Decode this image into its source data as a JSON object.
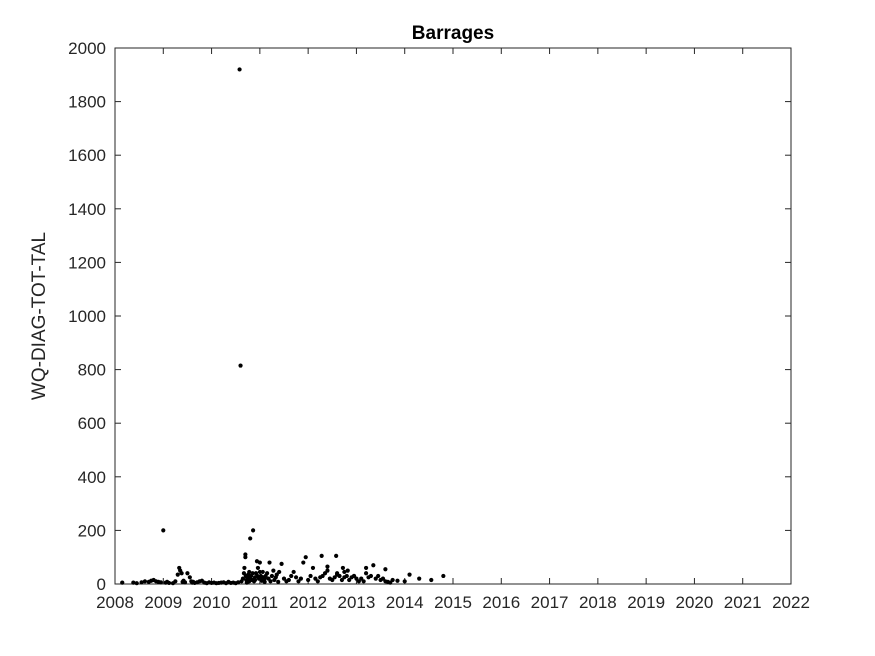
{
  "chart_data": {
    "type": "scatter",
    "title": "Barrages",
    "xlabel": "",
    "ylabel": "WQ-DIAG-TOT-TAL",
    "xlim": [
      2008,
      2022
    ],
    "ylim": [
      0,
      2000
    ],
    "x_ticks": [
      "2008",
      "2009",
      "2010",
      "2011",
      "2012",
      "2013",
      "2014",
      "2015",
      "2016",
      "2017",
      "2018",
      "2019",
      "2020",
      "2021",
      "2022"
    ],
    "y_ticks": [
      "0",
      "200",
      "400",
      "600",
      "800",
      "1000",
      "1200",
      "1400",
      "1600",
      "1800",
      "2000"
    ],
    "grid": false,
    "marker_color": "#000000",
    "series": [
      {
        "x": [
          2008.15,
          2008.38,
          2008.45,
          2008.55,
          2008.62,
          2008.7,
          2008.75,
          2008.8,
          2008.85,
          2008.9,
          2008.95,
          2009.0,
          2009.05,
          2009.08,
          2009.12,
          2009.2,
          2009.25,
          2009.3,
          2009.33,
          2009.35,
          2009.38,
          2009.4,
          2009.42,
          2009.45,
          2009.5,
          2009.55,
          2009.58,
          2009.6,
          2009.62,
          2009.65,
          2009.7,
          2009.75,
          2009.8,
          2009.85,
          2009.9,
          2009.95,
          2010.0,
          2010.05,
          2010.1,
          2010.15,
          2010.2,
          2010.25,
          2010.3,
          2010.35,
          2010.4,
          2010.45,
          2010.5,
          2010.55,
          2010.58,
          2010.6,
          2010.62,
          2010.65,
          2010.67,
          2010.68,
          2010.7,
          2010.7,
          2010.71,
          2010.72,
          2010.73,
          2010.74,
          2010.75,
          2010.76,
          2010.78,
          2010.8,
          2010.82,
          2010.84,
          2010.86,
          2010.88,
          2010.9,
          2010.92,
          2010.94,
          2010.96,
          2010.98,
          2011.0,
          2011.02,
          2011.04,
          2011.06,
          2011.08,
          2011.1,
          2011.12,
          2011.15,
          2011.18,
          2011.2,
          2011.22,
          2011.25,
          2011.28,
          2011.3,
          2011.33,
          2011.35,
          2011.38,
          2011.4,
          2011.45,
          2011.5,
          2011.55,
          2011.6,
          2011.65,
          2011.7,
          2011.75,
          2011.8,
          2011.85,
          2011.9,
          2011.95,
          2012.0,
          2012.05,
          2012.1,
          2012.15,
          2012.2,
          2012.25,
          2012.28,
          2012.3,
          2012.35,
          2012.4,
          2012.45,
          2012.5,
          2012.55,
          2012.58,
          2012.6,
          2012.65,
          2012.7,
          2012.72,
          2012.75,
          2012.8,
          2012.82,
          2012.85,
          2012.9,
          2012.95,
          2013.0,
          2013.05,
          2013.1,
          2013.15,
          2013.2,
          2013.25,
          2013.3,
          2013.35,
          2013.4,
          2013.45,
          2013.5,
          2013.55,
          2013.6,
          2013.65,
          2013.7,
          2013.75,
          2013.85,
          2014.0,
          2014.1,
          2014.3,
          2014.55,
          2014.8,
          2010.78,
          2010.8,
          2010.9,
          2010.95,
          2011.05,
          2010.85,
          2011.1,
          2011.0,
          2010.75,
          2010.88,
          2012.6,
          2012.4,
          2012.75,
          2012.95,
          2013.2,
          2013.6
        ],
        "y": [
          5,
          5,
          3,
          6,
          10,
          8,
          12,
          15,
          10,
          8,
          6,
          200,
          5,
          8,
          4,
          3,
          10,
          35,
          60,
          50,
          40,
          8,
          12,
          6,
          40,
          25,
          10,
          5,
          8,
          4,
          6,
          10,
          12,
          5,
          3,
          6,
          4,
          5,
          3,
          4,
          5,
          6,
          3,
          8,
          4,
          5,
          3,
          6,
          1920,
          815,
          10,
          20,
          40,
          60,
          110,
          100,
          30,
          15,
          5,
          8,
          20,
          35,
          45,
          170,
          30,
          15,
          200,
          10,
          25,
          40,
          85,
          60,
          20,
          80,
          30,
          12,
          45,
          25,
          8,
          30,
          40,
          20,
          80,
          10,
          30,
          50,
          15,
          25,
          35,
          8,
          45,
          75,
          20,
          10,
          15,
          30,
          45,
          25,
          10,
          20,
          80,
          100,
          15,
          30,
          60,
          20,
          10,
          25,
          105,
          30,
          40,
          65,
          20,
          15,
          25,
          105,
          40,
          30,
          15,
          60,
          25,
          30,
          50,
          15,
          25,
          30,
          20,
          10,
          20,
          10,
          40,
          25,
          30,
          70,
          20,
          30,
          15,
          20,
          10,
          8,
          5,
          15,
          12,
          10,
          35,
          20,
          15,
          30,
          10,
          20,
          15,
          30,
          25,
          40,
          20,
          45,
          25,
          15,
          35,
          50,
          45,
          30,
          60,
          55
        ]
      }
    ]
  }
}
